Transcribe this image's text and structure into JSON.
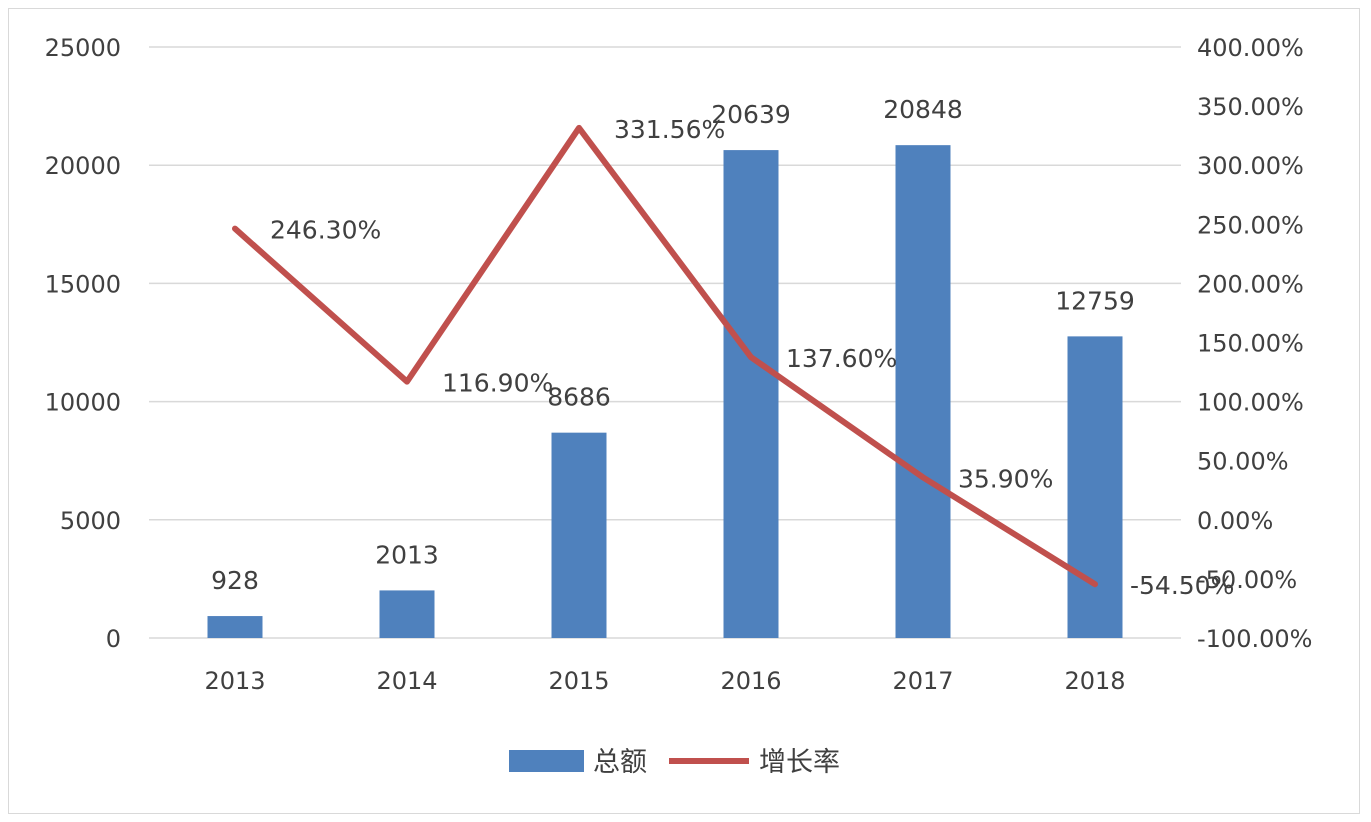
{
  "chart_data": {
    "type": "bar",
    "categories": [
      "2013",
      "2014",
      "2015",
      "2016",
      "2017",
      "2018"
    ],
    "series": [
      {
        "name": "总额",
        "type": "bar",
        "axis": "left",
        "color": "#4f81bd",
        "values": [
          928,
          2013,
          8686,
          20639,
          20848,
          12759
        ],
        "labels": [
          "928",
          "2013",
          "8686",
          "20639",
          "20848",
          "12759"
        ]
      },
      {
        "name": "增长率",
        "type": "line",
        "axis": "right",
        "color": "#c0504d",
        "values": [
          246.3,
          116.9,
          331.56,
          137.6,
          35.9,
          -54.5
        ],
        "labels": [
          "246.30%",
          "116.90%",
          "331.56%",
          "137.60%",
          "35.90%",
          "-54.50%"
        ]
      }
    ],
    "y_left": {
      "ylim": [
        0,
        25000
      ],
      "ticks": [
        0,
        5000,
        10000,
        15000,
        20000,
        25000
      ],
      "tick_labels": [
        "0",
        "5000",
        "10000",
        "15000",
        "20000",
        "25000"
      ]
    },
    "y_right": {
      "ylim": [
        -100,
        400
      ],
      "ticks": [
        -100,
        -50,
        0,
        50,
        100,
        150,
        200,
        250,
        300,
        350,
        400
      ],
      "tick_labels": [
        "-100.00%",
        "-50.00%",
        "0.00%",
        "50.00%",
        "100.00%",
        "150.00%",
        "200.00%",
        "250.00%",
        "300.00%",
        "350.00%",
        "400.00%"
      ]
    },
    "grid": true,
    "gridline_color": "#d9d9d9",
    "legend_position": "bottom"
  }
}
